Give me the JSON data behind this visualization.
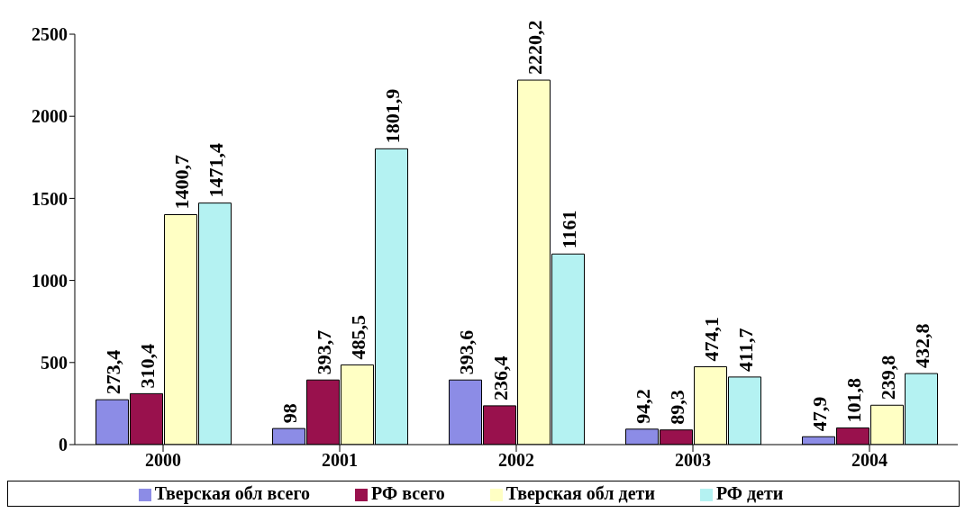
{
  "chart_data": {
    "type": "bar",
    "categories": [
      "2000",
      "2001",
      "2002",
      "2003",
      "2004"
    ],
    "series": [
      {
        "name": "Тверская обл всего",
        "color": "#8c8ce6",
        "values": [
          273.4,
          98,
          393.6,
          94.2,
          47.9
        ],
        "value_labels": [
          "273,4",
          "98",
          "393,6",
          "94,2",
          "47,9"
        ]
      },
      {
        "name": "РФ всего",
        "color": "#99114d",
        "values": [
          310.4,
          393.7,
          236.4,
          89.3,
          101.8
        ],
        "value_labels": [
          "310,4",
          "393,7",
          "236,4",
          "89,3",
          "101,8"
        ]
      },
      {
        "name": "Тверская обл дети",
        "color": "#ffffc4",
        "values": [
          1400.7,
          485.5,
          2220.2,
          474.1,
          239.8
        ],
        "value_labels": [
          "1400,7",
          "485,5",
          "2220,2",
          "474,1",
          "239,8"
        ]
      },
      {
        "name": "РФ дети",
        "color": "#b4f2f2",
        "values": [
          1471.4,
          1801.9,
          1161,
          411.7,
          432.8
        ],
        "value_labels": [
          "1471,4",
          "1801,9",
          "1161",
          "411,7",
          "432,8"
        ]
      }
    ],
    "ylim": [
      0,
      2500
    ],
    "yticks": [
      0,
      500,
      1000,
      1500,
      2000,
      2500
    ],
    "legend": "bottom"
  }
}
